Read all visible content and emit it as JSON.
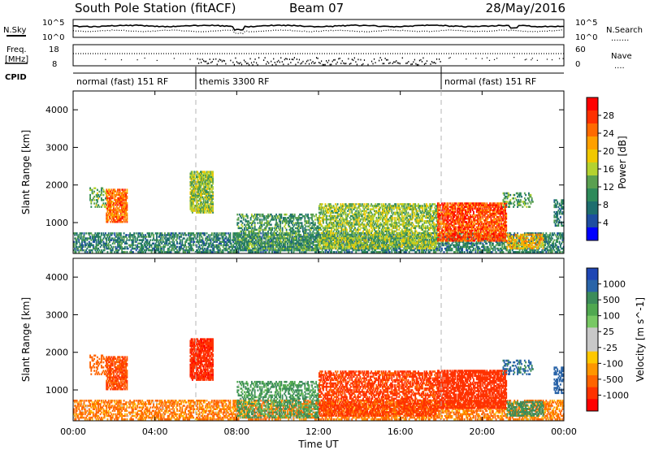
{
  "header": {
    "station": "South Pole Station (fitACF)",
    "beam": "Beam 07",
    "date": "28/May/2016"
  },
  "noise_panel": {
    "left_label": "N.Sky",
    "right_label": "N.Search",
    "right_legend": ".......",
    "left_ticks": [
      "10^5",
      "10^0"
    ],
    "right_ticks": [
      "10^5",
      "10^0"
    ]
  },
  "freq_panel": {
    "label_line1": "Freq.",
    "label_line2": "[MHz]",
    "left_ticks": [
      "18",
      "8"
    ],
    "right_label": "Nave",
    "right_legend": "....",
    "right_ticks": [
      "60",
      "0"
    ]
  },
  "cpid_panel": {
    "label": "CPID",
    "segments": [
      {
        "label": "normal (fast) 151 RF",
        "start_h": 0,
        "end_h": 6
      },
      {
        "label": "themis 3300 RF",
        "start_h": 6,
        "end_h": 18
      },
      {
        "label": "normal (fast) 151 RF",
        "start_h": 18,
        "end_h": 24
      }
    ]
  },
  "x_axis": {
    "title": "Time UT",
    "ticks": [
      "00:00",
      "04:00",
      "08:00",
      "12:00",
      "16:00",
      "20:00",
      "00:00"
    ],
    "range_h": [
      0,
      24
    ]
  },
  "power_panel": {
    "ylabel": "Slant Range [km]",
    "yticks": [
      "4000",
      "3000",
      "2000",
      "1000"
    ],
    "ylim": [
      180,
      4500
    ],
    "colorbar_label": "Power [dB]",
    "colorbar_ticks": [
      "28",
      "24",
      "20",
      "16",
      "12",
      "8",
      "4"
    ],
    "colorbar_colors": [
      "#ff0000",
      "#ff3000",
      "#ff6a00",
      "#ffa000",
      "#f0c800",
      "#b4d230",
      "#5aa050",
      "#2e8a5a",
      "#1e6e6e",
      "#1e4ea0",
      "#0000ff"
    ]
  },
  "velocity_panel": {
    "ylabel": "Slant Range [km]",
    "yticks": [
      "4000",
      "3000",
      "2000",
      "1000"
    ],
    "ylim": [
      180,
      4500
    ],
    "colorbar_label": "Velocity [m s^-1]",
    "colorbar_ticks": [
      "1000",
      "500",
      "100",
      "25",
      "-25",
      "-100",
      "-500",
      "-1000"
    ],
    "colorbar_colors": [
      "#1e46b4",
      "#2a64a8",
      "#3c8c5a",
      "#50a850",
      "#78c864",
      "#c8c8c8",
      "#c8c8c8",
      "#ffc800",
      "#ff9600",
      "#ff6400",
      "#ff3200",
      "#ff0000"
    ]
  },
  "chart_data": {
    "type": "heatmap",
    "title": "South Pole Station (fitACF) Beam 07 28/May/2016",
    "xlabel": "Time UT",
    "ylabel": "Slant Range [km]",
    "x_range_h": [
      0,
      24
    ],
    "y_range_km": [
      180,
      4500
    ],
    "mode_change_lines_h": [
      6,
      18
    ],
    "scatter_regions": [
      {
        "t0": 0.0,
        "t1": 24.0,
        "r0": 200,
        "r1": 700,
        "power_db": 8,
        "velocity": -50,
        "density": 0.55
      },
      {
        "t0": 1.6,
        "t1": 2.6,
        "r0": 1000,
        "r1": 1900,
        "power_db": 24,
        "velocity": -150,
        "density": 0.7
      },
      {
        "t0": 0.8,
        "t1": 1.6,
        "r0": 1400,
        "r1": 1900,
        "power_db": 12,
        "velocity": -100,
        "density": 0.35
      },
      {
        "t0": 5.7,
        "t1": 6.8,
        "r0": 1250,
        "r1": 2350,
        "power_db": 14,
        "velocity": -400,
        "density": 0.8
      },
      {
        "t0": 8.0,
        "t1": 12.0,
        "r0": 250,
        "r1": 1200,
        "power_db": 10,
        "velocity": 50,
        "density": 0.45
      },
      {
        "t0": 12.0,
        "t1": 17.8,
        "r0": 300,
        "r1": 1500,
        "power_db": 14,
        "velocity": -200,
        "density": 0.6
      },
      {
        "t0": 17.8,
        "t1": 21.2,
        "r0": 500,
        "r1": 1500,
        "power_db": 26,
        "velocity": -300,
        "density": 0.75
      },
      {
        "t0": 21.2,
        "t1": 23.0,
        "r0": 300,
        "r1": 700,
        "power_db": 20,
        "velocity": 80,
        "density": 0.5
      },
      {
        "t0": 21.0,
        "t1": 22.5,
        "r0": 1400,
        "r1": 1800,
        "power_db": 10,
        "velocity": 200,
        "density": 0.35
      },
      {
        "t0": 23.5,
        "t1": 24.0,
        "r0": 900,
        "r1": 1600,
        "power_db": 8,
        "velocity": 300,
        "density": 0.4
      }
    ]
  }
}
